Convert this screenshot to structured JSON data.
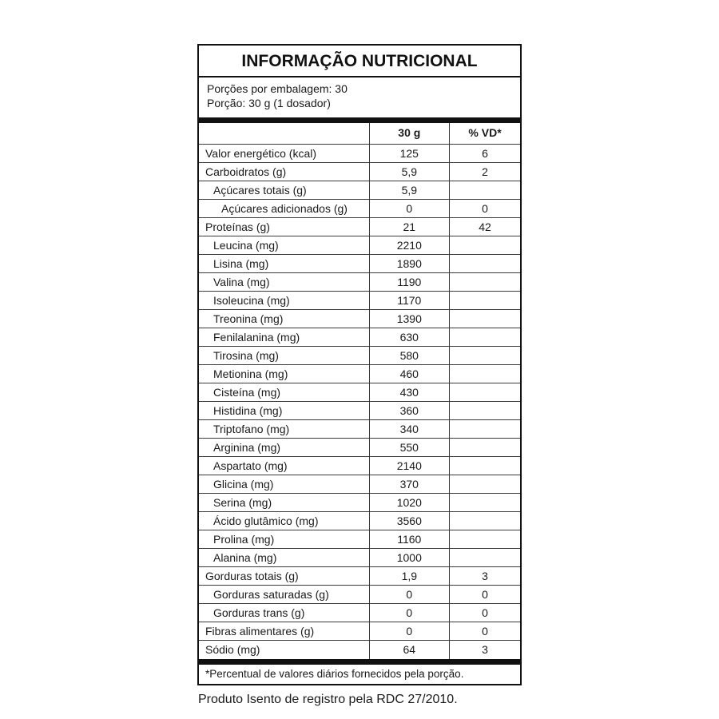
{
  "title": "INFORMAÇÃO NUTRICIONAL",
  "serving": {
    "per_package": "Porções por embalagem: 30",
    "size": "Porção: 30 g (1 dosador)"
  },
  "columns": {
    "label": "",
    "amount": "30 g",
    "dv": "% VD*"
  },
  "rows": [
    {
      "label": "Valor energético (kcal)",
      "amount": "125",
      "dv": "6",
      "indent": 0
    },
    {
      "label": "Carboidratos (g)",
      "amount": "5,9",
      "dv": "2",
      "indent": 0
    },
    {
      "label": "Açúcares totais (g)",
      "amount": "5,9",
      "dv": "",
      "indent": 1
    },
    {
      "label": "Açúcares adicionados (g)",
      "amount": "0",
      "dv": "0",
      "indent": 2
    },
    {
      "label": "Proteínas (g)",
      "amount": "21",
      "dv": "42",
      "indent": 0
    },
    {
      "label": "Leucina (mg)",
      "amount": "2210",
      "dv": "",
      "indent": 1
    },
    {
      "label": "Lisina (mg)",
      "amount": "1890",
      "dv": "",
      "indent": 1
    },
    {
      "label": "Valina (mg)",
      "amount": "1190",
      "dv": "",
      "indent": 1
    },
    {
      "label": "Isoleucina (mg)",
      "amount": "1170",
      "dv": "",
      "indent": 1
    },
    {
      "label": "Treonina (mg)",
      "amount": "1390",
      "dv": "",
      "indent": 1
    },
    {
      "label": "Fenilalanina (mg)",
      "amount": "630",
      "dv": "",
      "indent": 1
    },
    {
      "label": "Tirosina (mg)",
      "amount": "580",
      "dv": "",
      "indent": 1
    },
    {
      "label": "Metionina (mg)",
      "amount": "460",
      "dv": "",
      "indent": 1
    },
    {
      "label": "Cisteína (mg)",
      "amount": "430",
      "dv": "",
      "indent": 1
    },
    {
      "label": "Histidina (mg)",
      "amount": "360",
      "dv": "",
      "indent": 1
    },
    {
      "label": "Triptofano (mg)",
      "amount": "340",
      "dv": "",
      "indent": 1
    },
    {
      "label": "Arginina (mg)",
      "amount": "550",
      "dv": "",
      "indent": 1
    },
    {
      "label": "Aspartato (mg)",
      "amount": "2140",
      "dv": "",
      "indent": 1
    },
    {
      "label": "Glicina (mg)",
      "amount": "370",
      "dv": "",
      "indent": 1
    },
    {
      "label": "Serina (mg)",
      "amount": "1020",
      "dv": "",
      "indent": 1
    },
    {
      "label": "Ácido glutâmico (mg)",
      "amount": "3560",
      "dv": "",
      "indent": 1
    },
    {
      "label": "Prolina (mg)",
      "amount": "1160",
      "dv": "",
      "indent": 1
    },
    {
      "label": "Alanina (mg)",
      "amount": "1000",
      "dv": "",
      "indent": 1
    },
    {
      "label": "Gorduras totais (g)",
      "amount": "1,9",
      "dv": "3",
      "indent": 0
    },
    {
      "label": "Gorduras saturadas (g)",
      "amount": "0",
      "dv": "0",
      "indent": 1
    },
    {
      "label": "Gorduras trans (g)",
      "amount": "0",
      "dv": "0",
      "indent": 1
    },
    {
      "label": "Fibras alimentares (g)",
      "amount": "0",
      "dv": "0",
      "indent": 0
    },
    {
      "label": "Sódio (mg)",
      "amount": "64",
      "dv": "3",
      "indent": 0
    }
  ],
  "footnote": "*Percentual de valores diários fornecidos pela porção.",
  "registration_note": "Produto Isento de registro pela RDC 27/2010."
}
